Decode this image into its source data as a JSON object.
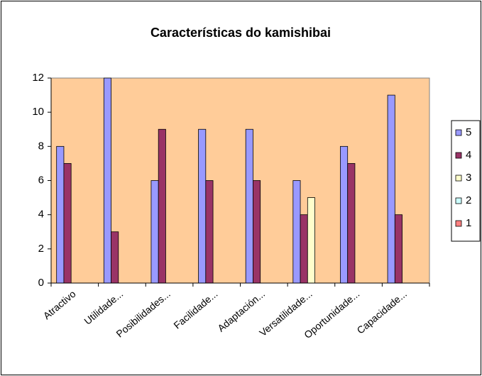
{
  "chart_data": {
    "type": "bar",
    "title": "Características do kamishibai",
    "categories": [
      "Atractivo",
      "Utilidade...",
      "Posibilidades...",
      "Facilidade...",
      "Adaptación...",
      "Versatilidade...",
      "Oportunidade...",
      "Capacidade..."
    ],
    "series": [
      {
        "name": "5",
        "color": "#9999ff",
        "values": [
          8,
          12,
          6,
          9,
          9,
          6,
          8,
          11
        ]
      },
      {
        "name": "4",
        "color": "#993366",
        "values": [
          7,
          3,
          9,
          6,
          6,
          4,
          7,
          4
        ]
      },
      {
        "name": "3",
        "color": "#ffffcc",
        "values": [
          0,
          0,
          0,
          0,
          0,
          5,
          0,
          0
        ]
      },
      {
        "name": "2",
        "color": "#ccffff",
        "values": [
          0,
          0,
          0,
          0,
          0,
          0,
          0,
          0
        ]
      },
      {
        "name": "1",
        "color": "#ff8080",
        "values": [
          0,
          0,
          0,
          0,
          0,
          0,
          0,
          0
        ]
      }
    ],
    "ylim": [
      0,
      12
    ],
    "yticks": [
      0,
      2,
      4,
      6,
      8,
      10,
      12
    ],
    "legend": "right",
    "plot_background": "#ffcc99"
  }
}
